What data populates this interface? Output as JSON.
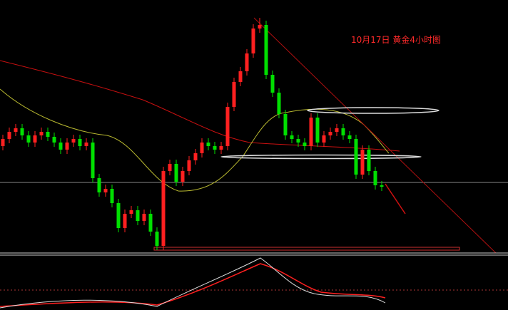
{
  "chart_data": {
    "type": "candlestick",
    "title": "10月17日 黄金4小时图",
    "up_color": "#ff2020",
    "down_color": "#00e000",
    "ylim": [
      0,
      355
    ],
    "open": [
      150,
      160,
      170,
      175,
      165,
      155,
      165,
      170,
      163,
      155,
      145,
      155,
      160,
      150,
      155,
      105,
      85,
      90,
      70,
      35,
      55,
      60,
      45,
      55,
      30,
      10,
      115,
      125,
      100,
      115,
      130,
      140,
      155,
      150,
      145,
      150,
      205,
      240,
      255,
      280,
      315,
      320,
      250,
      225,
      195,
      165,
      160,
      155,
      150,
      190,
      155,
      165,
      170,
      175,
      165,
      160,
      110,
      145,
      115,
      95
    ],
    "high": [
      166,
      176,
      181,
      181,
      171,
      171,
      176,
      176,
      169,
      161,
      161,
      166,
      166,
      161,
      161,
      111,
      96,
      96,
      76,
      61,
      66,
      66,
      61,
      61,
      36,
      121,
      131,
      131,
      121,
      136,
      146,
      161,
      161,
      156,
      156,
      211,
      246,
      261,
      286,
      321,
      330,
      326,
      256,
      231,
      201,
      171,
      166,
      161,
      196,
      196,
      171,
      176,
      181,
      181,
      171,
      166,
      151,
      151,
      121,
      101
    ],
    "low": [
      144,
      154,
      164,
      159,
      149,
      149,
      159,
      157,
      149,
      139,
      139,
      149,
      144,
      144,
      99,
      79,
      79,
      64,
      29,
      29,
      49,
      39,
      39,
      24,
      4,
      4,
      109,
      94,
      94,
      109,
      124,
      134,
      144,
      139,
      139,
      144,
      199,
      234,
      249,
      274,
      309,
      244,
      219,
      189,
      159,
      154,
      149,
      144,
      144,
      149,
      149,
      159,
      164,
      159,
      154,
      104,
      104,
      109,
      89,
      87
    ],
    "close": [
      160,
      170,
      175,
      165,
      155,
      165,
      170,
      163,
      155,
      145,
      155,
      160,
      150,
      155,
      105,
      85,
      90,
      70,
      35,
      55,
      60,
      45,
      55,
      30,
      10,
      115,
      125,
      100,
      115,
      130,
      140,
      155,
      150,
      145,
      150,
      205,
      240,
      255,
      280,
      315,
      320,
      250,
      225,
      195,
      165,
      160,
      155,
      150,
      190,
      155,
      165,
      170,
      175,
      165,
      160,
      110,
      145,
      115,
      95,
      93
    ]
  }
}
